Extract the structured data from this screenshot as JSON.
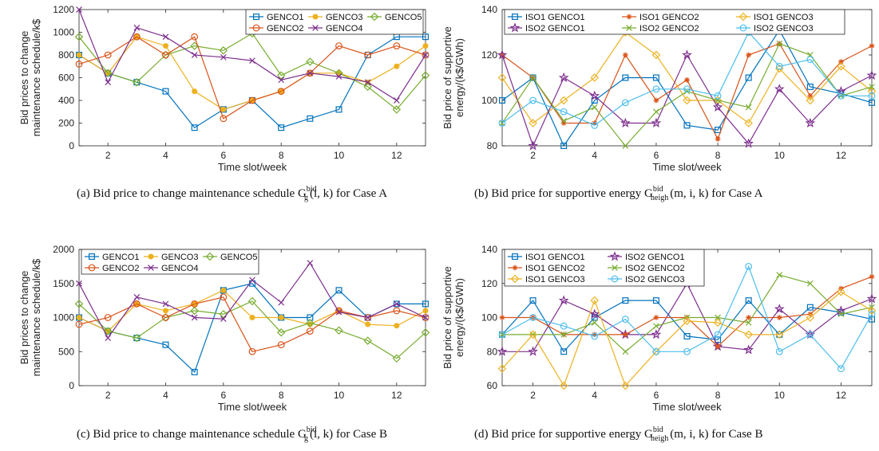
{
  "colors": {
    "blue": "#0072BD",
    "orange": "#D95319",
    "yellow": "#EDB120",
    "purple": "#7E2F8E",
    "green": "#77AC30",
    "cyan": "#4DBEEE"
  },
  "chart_data": [
    {
      "id": "a",
      "type": "line",
      "xlabel": "Time slot/week",
      "ylabel": "Bid prices to change maintenance schedule/k$",
      "ylabel_lines": [
        "Bid prices to change",
        "maintenance schedule/k$"
      ],
      "xlim": [
        1,
        13
      ],
      "ylim": [
        0,
        1200
      ],
      "xticks": [
        2,
        4,
        6,
        8,
        10,
        12
      ],
      "yticks": [
        0,
        200,
        400,
        600,
        800,
        1000,
        1200
      ],
      "legend_position": "top-right",
      "legend_cols": 3,
      "caption_main": "(a)  Bid price to change maintenance schedule G",
      "caption_sup": "bid",
      "caption_sub": "g",
      "caption_tail": "(i, k) for Case A",
      "x": [
        1,
        2,
        3,
        4,
        5,
        6,
        7,
        8,
        9,
        10,
        11,
        12,
        13
      ],
      "series": [
        {
          "name": "GENCO1",
          "color": "blue",
          "marker": "square",
          "values": [
            800,
            640,
            560,
            480,
            160,
            320,
            400,
            160,
            240,
            320,
            800,
            960,
            960
          ]
        },
        {
          "name": "GENCO3",
          "color": "yellow",
          "marker": "dot",
          "values": [
            800,
            640,
            960,
            880,
            480,
            320,
            400,
            480,
            640,
            640,
            560,
            700,
            880
          ]
        },
        {
          "name": "GENCO5",
          "color": "green",
          "marker": "diamond",
          "values": [
            960,
            640,
            560,
            800,
            880,
            840,
            990,
            620,
            740,
            640,
            520,
            320,
            620
          ]
        },
        {
          "name": "GENCO2",
          "color": "orange",
          "marker": "circle",
          "values": [
            720,
            800,
            960,
            800,
            960,
            240,
            400,
            480,
            640,
            880,
            800,
            880,
            800
          ]
        },
        {
          "name": "GENCO4",
          "color": "purple",
          "marker": "x",
          "values": [
            1200,
            560,
            1040,
            960,
            800,
            780,
            750,
            580,
            640,
            610,
            560,
            400,
            800
          ]
        }
      ]
    },
    {
      "id": "b",
      "type": "line",
      "xlabel": "Time slot/week",
      "ylabel": "Bid price of supportive energy/(k$/GWh)",
      "ylabel_lines": [
        "Bid price of supportive",
        "energy/(k$/GWh)"
      ],
      "xlim": [
        1,
        13
      ],
      "ylim": [
        80,
        140
      ],
      "xticks": [
        2,
        4,
        6,
        8,
        10,
        12
      ],
      "yticks": [
        80,
        100,
        120,
        140
      ],
      "legend_position": "top",
      "legend_cols": 3,
      "caption_main": "(b)  Bid price for supportive energy G",
      "caption_sup": "bid",
      "caption_sub": "neigh",
      "caption_tail": "(m, i, k) for Case A",
      "x": [
        1,
        2,
        3,
        4,
        5,
        6,
        7,
        8,
        9,
        10,
        11,
        12,
        13
      ],
      "series": [
        {
          "name": "ISO1 GENCO1",
          "color": "blue",
          "marker": "square",
          "values": [
            100,
            110,
            80,
            100,
            110,
            110,
            89,
            87,
            110,
            131,
            106,
            103,
            99
          ]
        },
        {
          "name": "ISO1 GENCO2",
          "color": "orange",
          "marker": "asterisk",
          "values": [
            120,
            110,
            90,
            90,
            120,
            100,
            109,
            83,
            120,
            125,
            102,
            117,
            124
          ]
        },
        {
          "name": "ISO1 GENCO3",
          "color": "yellow",
          "marker": "diamond",
          "values": [
            110,
            90,
            100,
            110,
            130,
            120,
            100,
            100,
            90,
            114,
            100,
            115,
            104
          ]
        },
        {
          "name": "ISO2 GENCO1",
          "color": "purple",
          "marker": "star",
          "values": [
            120,
            80,
            110,
            102,
            90,
            90,
            120,
            97,
            81,
            105,
            90,
            104,
            111
          ]
        },
        {
          "name": "ISO2 GENCO2",
          "color": "green",
          "marker": "x",
          "values": [
            90,
            110,
            91,
            97,
            80,
            95,
            104,
            100,
            97,
            125,
            120,
            102,
            106
          ]
        },
        {
          "name": "ISO2 GENCO3",
          "color": "cyan",
          "marker": "circle",
          "values": [
            90,
            100,
            95,
            89,
            99,
            105,
            105,
            102,
            130,
            115,
            118,
            102,
            102
          ]
        }
      ]
    },
    {
      "id": "c",
      "type": "line",
      "xlabel": "Time slot/week",
      "ylabel": "Bid prices to change maintenance schedule/k$",
      "ylabel_lines": [
        "Bid prices to change",
        "maintenance schedule/k$"
      ],
      "xlim": [
        1,
        13
      ],
      "ylim": [
        0,
        2000
      ],
      "xticks": [
        2,
        4,
        6,
        8,
        10,
        12
      ],
      "yticks": [
        0,
        500,
        1000,
        1500,
        2000
      ],
      "legend_position": "top-left",
      "legend_cols": 3,
      "caption_main": "(c)  Bid price to change maintenance schedule G",
      "caption_sup": "bid",
      "caption_sub": "g",
      "caption_tail": "(i, k) for Case B",
      "x": [
        1,
        2,
        3,
        4,
        5,
        6,
        7,
        8,
        9,
        10,
        11,
        12,
        13
      ],
      "series": [
        {
          "name": "GENCO1",
          "color": "blue",
          "marker": "square",
          "values": [
            1000,
            800,
            700,
            600,
            200,
            1400,
            1500,
            1000,
            1000,
            1400,
            1000,
            1200,
            1200
          ]
        },
        {
          "name": "GENCO3",
          "color": "yellow",
          "marker": "dot",
          "values": [
            1000,
            800,
            1200,
            1100,
            1200,
            1400,
            1000,
            1000,
            900,
            1100,
            900,
            880,
            1100
          ]
        },
        {
          "name": "GENCO5",
          "color": "green",
          "marker": "diamond",
          "values": [
            1200,
            800,
            700,
            1000,
            1100,
            1050,
            1240,
            780,
            920,
            810,
            660,
            400,
            780
          ]
        },
        {
          "name": "GENCO2",
          "color": "orange",
          "marker": "circle",
          "values": [
            900,
            1000,
            1200,
            1000,
            1200,
            1300,
            500,
            600,
            800,
            1100,
            1000,
            1100,
            1000
          ]
        },
        {
          "name": "GENCO4",
          "color": "purple",
          "marker": "x",
          "values": [
            1500,
            700,
            1300,
            1200,
            1000,
            980,
            1550,
            1220,
            1800,
            1080,
            1000,
            1200,
            1000
          ]
        }
      ]
    },
    {
      "id": "d",
      "type": "line",
      "xlabel": "Time slot/week",
      "ylabel": "Bid price of supportive energy/(k$/GWh)",
      "ylabel_lines": [
        "Bid price of supportive",
        "energy/(k$/GWh)"
      ],
      "xlim": [
        1,
        13
      ],
      "ylim": [
        60,
        140
      ],
      "xticks": [
        2,
        4,
        6,
        8,
        10,
        12
      ],
      "yticks": [
        60,
        80,
        100,
        120,
        140
      ],
      "legend_position": "top-left",
      "legend_cols": 2,
      "caption_main": "(d)  Bid price for supportive energy G",
      "caption_sup": "bid",
      "caption_sub": "neigh",
      "caption_tail": "(m, i, k) for Case B",
      "x": [
        1,
        2,
        3,
        4,
        5,
        6,
        7,
        8,
        9,
        10,
        11,
        12,
        13
      ],
      "series": [
        {
          "name": "ISO1 GENCO1",
          "color": "blue",
          "marker": "square",
          "values": [
            90,
            110,
            80,
            100,
            110,
            110,
            89,
            87,
            110,
            90,
            106,
            103,
            99
          ]
        },
        {
          "name": "ISO2 GENCO1",
          "color": "purple",
          "marker": "star",
          "values": [
            80,
            80,
            110,
            102,
            90,
            90,
            120,
            83,
            81,
            105,
            90,
            104,
            111
          ]
        },
        {
          "name": "ISO1 GENCO2",
          "color": "orange",
          "marker": "asterisk",
          "values": [
            100,
            100,
            90,
            90,
            90,
            100,
            100,
            83,
            100,
            100,
            102,
            117,
            124
          ]
        },
        {
          "name": "ISO2 GENCO2",
          "color": "green",
          "marker": "x",
          "values": [
            90,
            90,
            90,
            97,
            80,
            95,
            100,
            100,
            97,
            125,
            120,
            102,
            106
          ]
        },
        {
          "name": "ISO1 GENCO3",
          "color": "yellow",
          "marker": "diamond",
          "values": [
            70,
            90,
            60,
            110,
            60,
            80,
            98,
            97,
            90,
            90,
            100,
            115,
            104
          ]
        },
        {
          "name": "ISO2 GENCO3",
          "color": "cyan",
          "marker": "circle",
          "values": [
            90,
            100,
            95,
            89,
            99,
            80,
            80,
            90,
            130,
            80,
            90,
            70,
            102
          ]
        }
      ]
    }
  ]
}
